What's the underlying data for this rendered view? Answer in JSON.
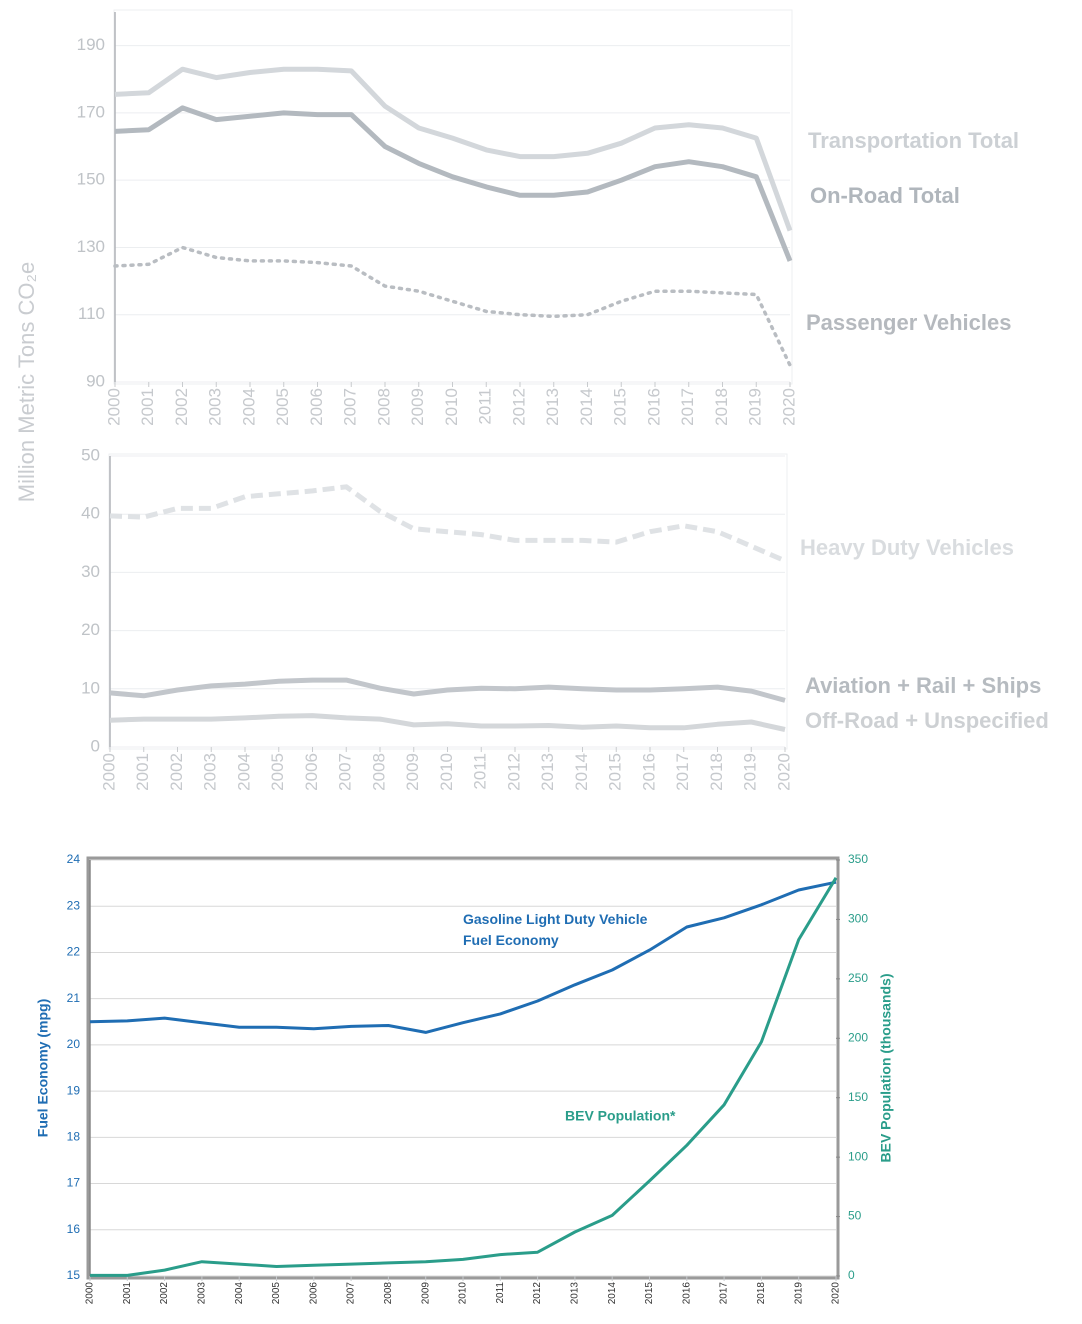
{
  "chart_data": [
    {
      "type": "line",
      "ylabel": "Million Metric Tons CO₂e",
      "x": [
        "2000",
        "2001",
        "2002",
        "2003",
        "2004",
        "2005",
        "2006",
        "2007",
        "2008",
        "2009",
        "2010",
        "2011",
        "2012",
        "2013",
        "2014",
        "2015",
        "2016",
        "2017",
        "2018",
        "2019",
        "2020"
      ],
      "ylim": [
        90,
        200
      ],
      "yticks": [
        90,
        110,
        130,
        150,
        170,
        190
      ],
      "grid": true,
      "series": [
        {
          "name": "Transportation Total",
          "color": "#d3d7db",
          "line_style": "solid",
          "values": [
            175.5,
            176,
            183,
            180.5,
            182,
            183,
            183,
            182.5,
            172,
            165.5,
            162.5,
            159,
            157,
            157,
            158,
            161,
            165.5,
            166.5,
            165.5,
            162.5,
            135
          ]
        },
        {
          "name": "On-Road Total",
          "color": "#b3b9bf",
          "line_style": "solid",
          "values": [
            164.5,
            165,
            171.5,
            168,
            169,
            170,
            169.5,
            169.5,
            160,
            155,
            151,
            148,
            145.5,
            145.5,
            146.5,
            150,
            154,
            155.5,
            154,
            151,
            126
          ]
        },
        {
          "name": "Passenger Vehicles",
          "color": "#b9bdc2",
          "line_style": "dotted",
          "values": [
            124.5,
            125,
            130,
            127,
            126,
            126,
            125.5,
            124.5,
            118.5,
            117,
            114,
            111,
            110,
            109.5,
            110,
            114,
            117,
            117,
            116.5,
            116,
            95
          ]
        }
      ]
    },
    {
      "type": "line",
      "x": [
        "2000",
        "2001",
        "2002",
        "2003",
        "2004",
        "2005",
        "2006",
        "2007",
        "2008",
        "2009",
        "2010",
        "2011",
        "2012",
        "2013",
        "2014",
        "2015",
        "2016",
        "2017",
        "2018",
        "2019",
        "2020"
      ],
      "ylim": [
        0,
        50
      ],
      "yticks": [
        0,
        10,
        20,
        30,
        40,
        50
      ],
      "grid": true,
      "series": [
        {
          "name": "Heavy Duty Vehicles",
          "color": "#dfe2e5",
          "line_style": "dashed",
          "values": [
            39.7,
            39.5,
            41,
            41,
            43,
            43.5,
            44,
            44.7,
            40.5,
            37.5,
            37,
            36.5,
            35.5,
            35.5,
            35.5,
            35.2,
            37,
            38,
            37,
            34.5,
            32
          ]
        },
        {
          "name": "Aviation + Rail + Ships",
          "color": "#c2c6cb",
          "line_style": "solid",
          "values": [
            9.3,
            8.8,
            9.8,
            10.5,
            10.8,
            11.3,
            11.5,
            11.5,
            10.1,
            9.1,
            9.8,
            10.1,
            10,
            10.3,
            10,
            9.8,
            9.8,
            10,
            10.3,
            9.6,
            8
          ]
        },
        {
          "name": "Off-Road + Unspecified",
          "color": "#d4d7da",
          "line_style": "solid",
          "values": [
            4.6,
            4.8,
            4.8,
            4.8,
            5,
            5.3,
            5.4,
            5,
            4.8,
            3.8,
            4,
            3.6,
            3.6,
            3.7,
            3.4,
            3.6,
            3.3,
            3.3,
            3.9,
            4.3,
            3
          ]
        }
      ]
    },
    {
      "type": "line",
      "ylabel": "Fuel Economy (mpg)",
      "y2label": "BEV Population (thousands)",
      "x": [
        "2000",
        "2001",
        "2002",
        "2003",
        "2004",
        "2005",
        "2006",
        "2007",
        "2008",
        "2009",
        "2010",
        "2011",
        "2012",
        "2013",
        "2014",
        "2015",
        "2016",
        "2017",
        "2018",
        "2019",
        "2020"
      ],
      "ylim": [
        15,
        24
      ],
      "yticks": [
        15,
        16,
        17,
        18,
        19,
        20,
        21,
        22,
        23,
        24
      ],
      "y2lim": [
        0,
        350
      ],
      "y2ticks": [
        0,
        50,
        100,
        150,
        200,
        250,
        300,
        350
      ],
      "grid": true,
      "series": [
        {
          "name": "Gasoline Light Duty Vehicle Fuel Economy",
          "color": "#1f6db3",
          "line_style": "solid",
          "values": [
            20.5,
            20.52,
            20.58,
            20.48,
            20.38,
            20.38,
            20.35,
            20.4,
            20.42,
            20.27,
            20.48,
            20.67,
            20.95,
            21.3,
            21.62,
            22.05,
            22.55,
            22.75,
            23.03,
            23.35,
            23.52
          ]
        },
        {
          "name": "BEV Population*",
          "color": "#2a9d8a",
          "line_style": "solid",
          "axis": "y2",
          "values": [
            0.5,
            0.5,
            5,
            12,
            10,
            8,
            9,
            10,
            11,
            12,
            14,
            18,
            20,
            37,
            51,
            80,
            110,
            144,
            197,
            283,
            335
          ]
        }
      ]
    }
  ]
}
